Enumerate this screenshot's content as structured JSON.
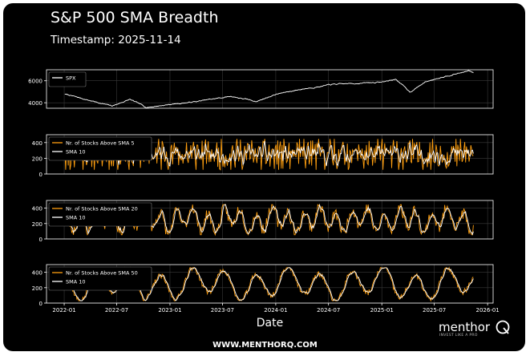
{
  "title": "S&P 500 SMA Breadth",
  "subtitle": "Timestamp: 2025-11-14",
  "branding": {
    "name": "menthor",
    "tagline": "INVEST LIKE A PRO",
    "url": "WWW.MENTHORQ.COM"
  },
  "colors": {
    "background": "#000000",
    "line_white": "#ffffff",
    "line_orange": "#ff9f0f",
    "grid": "#3a3a3a"
  },
  "chart_data": [
    {
      "type": "line",
      "title": "",
      "xlabel": "Date",
      "ylabel": "",
      "x_date_range": [
        "2022-01-03",
        "2025-11-14"
      ],
      "ylim": [
        3500,
        7000
      ],
      "yticks": [
        4000,
        6000
      ],
      "legend": "top-left",
      "series": [
        {
          "name": "SPX",
          "color": "#ffffff",
          "dates": [
            "2022-01-03",
            "2022-03-01",
            "2022-06-15",
            "2022-08-15",
            "2022-10-12",
            "2023-01-01",
            "2023-04-01",
            "2023-07-31",
            "2023-10-27",
            "2024-01-01",
            "2024-04-01",
            "2024-07-15",
            "2024-10-01",
            "2025-01-01",
            "2025-02-19",
            "2025-04-08",
            "2025-06-01",
            "2025-08-01",
            "2025-10-28",
            "2025-11-14"
          ],
          "values": [
            4790,
            4400,
            3700,
            4300,
            3580,
            3850,
            4100,
            4590,
            4120,
            4770,
            5250,
            5660,
            5760,
            5880,
            6140,
            4980,
            5900,
            6390,
            6890,
            6700
          ]
        }
      ]
    },
    {
      "type": "line",
      "xlabel": "",
      "ylabel": "",
      "x_date_range": [
        "2022-01-03",
        "2025-11-14"
      ],
      "ylim": [
        0,
        500
      ],
      "yticks": [
        0,
        200,
        400
      ],
      "legend": "top-left",
      "series": [
        {
          "name": "Nr. of Stocks Above SMA 5",
          "color": "#ff9f0f",
          "mean": 250,
          "swing": 170,
          "noise": 1.0,
          "period_days": 5,
          "seed": 11
        },
        {
          "name": "SMA 10",
          "color": "#ffffff",
          "smooth_of": 0,
          "window": 10
        }
      ]
    },
    {
      "type": "line",
      "xlabel": "",
      "ylabel": "",
      "x_date_range": [
        "2022-01-03",
        "2025-11-14"
      ],
      "ylim": [
        0,
        500
      ],
      "yticks": [
        0,
        200,
        400
      ],
      "legend": "top-left",
      "series": [
        {
          "name": "Nr. of Stocks Above SMA 20",
          "color": "#ff9f0f",
          "mean": 250,
          "swing": 170,
          "noise": 0.45,
          "period_days": 55,
          "seed": 23
        },
        {
          "name": "SMA 10",
          "color": "#ffffff",
          "smooth_of": 0,
          "window": 10
        }
      ]
    },
    {
      "type": "line",
      "xlabel": "Date",
      "ylabel": "",
      "x_date_range": [
        "2022-01-03",
        "2025-11-14"
      ],
      "ylim": [
        0,
        500
      ],
      "yticks": [
        0,
        200,
        400
      ],
      "xticks": [
        "2022-01",
        "2022-07",
        "2023-01",
        "2023-07",
        "2024-01",
        "2024-07",
        "2025-01",
        "2025-07",
        "2026-01"
      ],
      "legend": "top-left",
      "series": [
        {
          "name": "Nr. of Stocks Above SMA 50",
          "color": "#ff9f0f",
          "mean": 250,
          "swing": 190,
          "noise": 0.2,
          "period_days": 110,
          "seed": 37
        },
        {
          "name": "SMA 10",
          "color": "#ffffff",
          "smooth_of": 0,
          "window": 10
        }
      ]
    }
  ]
}
